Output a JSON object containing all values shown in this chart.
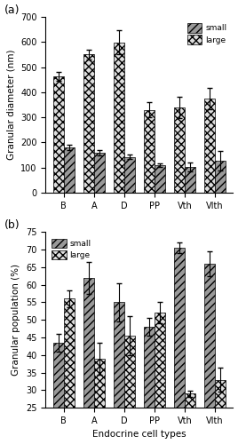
{
  "categories": [
    "B",
    "A",
    "D",
    "PP",
    "Vth",
    "VIth"
  ],
  "panel_a": {
    "small_vals": [
      180,
      160,
      143,
      110,
      102,
      127
    ],
    "small_err": [
      10,
      10,
      8,
      8,
      18,
      38
    ],
    "large_vals": [
      463,
      550,
      598,
      330,
      340,
      375
    ],
    "large_err": [
      18,
      18,
      48,
      30,
      42,
      42
    ],
    "ylabel": "Granular diameter (nm)",
    "ylim": [
      0,
      700
    ],
    "yticks": [
      0,
      100,
      200,
      300,
      400,
      500,
      600,
      700
    ]
  },
  "panel_b": {
    "small_vals": [
      43.5,
      62.0,
      55.0,
      48.0,
      70.5,
      66.0
    ],
    "small_err": [
      2.5,
      4.5,
      5.5,
      2.5,
      1.5,
      3.5
    ],
    "large_vals": [
      56.0,
      39.0,
      45.5,
      52.0,
      29.0,
      33.0
    ],
    "large_err": [
      2.5,
      4.5,
      5.5,
      3.0,
      0.8,
      3.5
    ],
    "ylabel": "Granular population (%)",
    "ylim": [
      25,
      75
    ],
    "yticks": [
      25,
      30,
      35,
      40,
      45,
      50,
      55,
      60,
      65,
      70,
      75
    ]
  },
  "xlabel": "Endocrine cell types",
  "small_color": "#999999",
  "large_color": "#dddddd",
  "bar_width": 0.35,
  "label_a": "(a)",
  "label_b": "(b)"
}
